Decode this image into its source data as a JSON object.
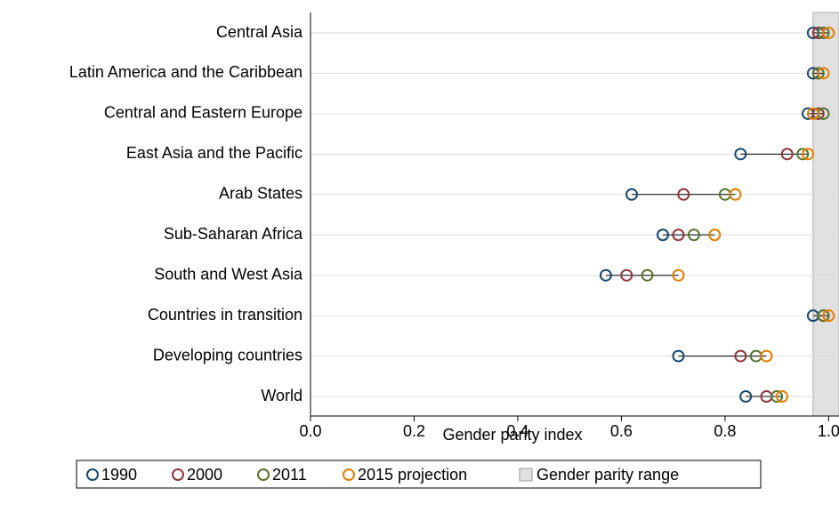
{
  "chart_data": {
    "type": "dot",
    "xlabel": "Gender parity index",
    "categories": [
      "Central Asia",
      "Latin America and the Caribbean",
      "Central and Eastern Europe",
      "East Asia and the Pacific",
      "Arab States",
      "Sub-Saharan Africa",
      "South and West Asia",
      "Countries in transition",
      "Developing countries",
      "World"
    ],
    "series": [
      {
        "name": "1990",
        "color": "#1a476f",
        "values": [
          0.97,
          0.97,
          0.96,
          0.83,
          0.62,
          0.68,
          0.57,
          0.97,
          0.71,
          0.84
        ]
      },
      {
        "name": "2000",
        "color": "#90353b",
        "values": [
          0.98,
          0.98,
          0.98,
          0.92,
          0.72,
          0.71,
          0.61,
          0.99,
          0.83,
          0.88
        ]
      },
      {
        "name": "2011",
        "color": "#55752f",
        "values": [
          0.99,
          0.98,
          0.99,
          0.95,
          0.8,
          0.74,
          0.65,
          0.99,
          0.86,
          0.9
        ]
      },
      {
        "name": "2015 projection",
        "color": "#e37e00",
        "values": [
          1.0,
          0.99,
          0.97,
          0.96,
          0.82,
          0.78,
          0.71,
          1.0,
          0.88,
          0.91
        ]
      }
    ],
    "parity_range": {
      "name": "Gender parity range",
      "range": [
        0.97,
        1.03
      ],
      "color": "#e0e0e0"
    },
    "xlim": [
      0,
      1.02
    ],
    "xticks": [
      {
        "value": 0,
        "label": "0.0"
      },
      {
        "value": 0.2,
        "label": "0.2"
      },
      {
        "value": 0.4,
        "label": "0.4"
      },
      {
        "value": 0.6,
        "label": "0.6"
      },
      {
        "value": 0.8,
        "label": "0.8"
      },
      {
        "value": 1,
        "label": "1.0"
      }
    ],
    "grid": true,
    "legend": "bottom"
  }
}
